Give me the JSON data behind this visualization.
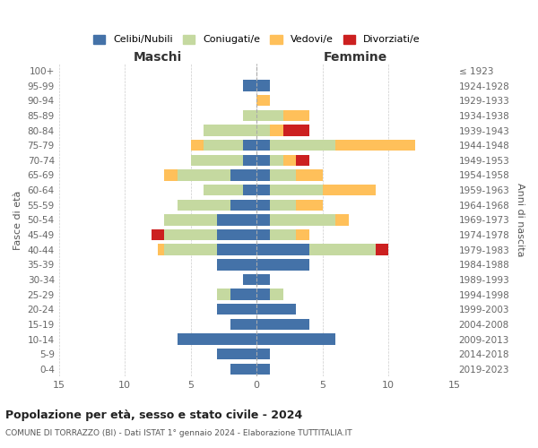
{
  "age_groups": [
    "0-4",
    "5-9",
    "10-14",
    "15-19",
    "20-24",
    "25-29",
    "30-34",
    "35-39",
    "40-44",
    "45-49",
    "50-54",
    "55-59",
    "60-64",
    "65-69",
    "70-74",
    "75-79",
    "80-84",
    "85-89",
    "90-94",
    "95-99",
    "100+"
  ],
  "birth_years": [
    "2019-2023",
    "2014-2018",
    "2009-2013",
    "2004-2008",
    "1999-2003",
    "1994-1998",
    "1989-1993",
    "1984-1988",
    "1979-1983",
    "1974-1978",
    "1969-1973",
    "1964-1968",
    "1959-1963",
    "1954-1958",
    "1949-1953",
    "1944-1948",
    "1939-1943",
    "1934-1938",
    "1929-1933",
    "1924-1928",
    "≤ 1923"
  ],
  "males": {
    "celibi": [
      2,
      3,
      6,
      2,
      3,
      2,
      1,
      3,
      3,
      3,
      3,
      2,
      1,
      2,
      1,
      1,
      0,
      0,
      0,
      1,
      0
    ],
    "coniugati": [
      0,
      0,
      0,
      0,
      0,
      1,
      0,
      0,
      4,
      4,
      4,
      4,
      3,
      4,
      4,
      3,
      4,
      1,
      0,
      0,
      0
    ],
    "vedovi": [
      0,
      0,
      0,
      0,
      0,
      0,
      0,
      0,
      0.5,
      0,
      0,
      0,
      0,
      1,
      0,
      1,
      0,
      0,
      0,
      0,
      0
    ],
    "divorziati": [
      0,
      0,
      0,
      0,
      0,
      0,
      0,
      0,
      0,
      1,
      0,
      0,
      0,
      0,
      0,
      0,
      0,
      0,
      0,
      0,
      0
    ]
  },
  "females": {
    "nubili": [
      1,
      1,
      6,
      4,
      3,
      1,
      1,
      4,
      4,
      1,
      1,
      1,
      1,
      1,
      1,
      1,
      0,
      0,
      0,
      1,
      0
    ],
    "coniugate": [
      0,
      0,
      0,
      0,
      0,
      1,
      0,
      0,
      5,
      2,
      5,
      2,
      4,
      2,
      1,
      5,
      1,
      2,
      0,
      0,
      0
    ],
    "vedove": [
      0,
      0,
      0,
      0,
      0,
      0,
      0,
      0,
      0,
      1,
      1,
      2,
      4,
      2,
      1,
      6,
      1,
      2,
      1,
      0,
      0
    ],
    "divorziate": [
      0,
      0,
      0,
      0,
      0,
      0,
      0,
      0,
      1,
      0,
      0,
      0,
      0,
      0,
      1,
      0,
      2,
      0,
      0,
      0,
      0
    ]
  },
  "colors": {
    "celibi": "#4472a8",
    "coniugati": "#c5d9a0",
    "vedovi": "#ffc05a",
    "divorziati": "#cc2020"
  },
  "xlim": 15,
  "title": "Popolazione per età, sesso e stato civile - 2024",
  "subtitle": "COMUNE DI TORRAZZO (BI) - Dati ISTAT 1° gennaio 2024 - Elaborazione TUTTITALIA.IT",
  "ylabel_left": "Fasce di età",
  "ylabel_right": "Anni di nascita",
  "xlabel_left": "Maschi",
  "xlabel_right": "Femmine",
  "legend_labels": [
    "Celibi/Nubili",
    "Coniugati/e",
    "Vedovi/e",
    "Divorziati/e"
  ],
  "background_color": "#ffffff"
}
